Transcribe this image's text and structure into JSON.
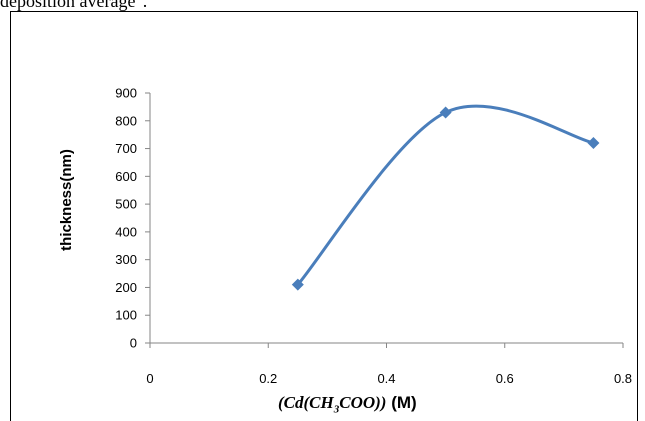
{
  "caption_fragment": "deposition average\".",
  "chart_data": {
    "type": "line",
    "smooth": true,
    "x": [
      0.25,
      0.5,
      0.75
    ],
    "y": [
      210,
      830,
      720
    ],
    "xlim": [
      0,
      0.8
    ],
    "ylim": [
      0,
      900
    ],
    "x_ticks": [
      "0",
      "0.2",
      "0.4",
      "0.6",
      "0.8"
    ],
    "y_ticks": [
      "0",
      "100",
      "200",
      "300",
      "400",
      "500",
      "600",
      "700",
      "800",
      "900"
    ],
    "ylabel": "thickness(nm)",
    "xlabel": "(Cd(CH3COO)) (M)",
    "xlabel_chem": "(Cd(CH",
    "xlabel_sub": "3",
    "xlabel_chem_end": "COO))",
    "xlabel_unit": "(M)",
    "grid": false,
    "legend": "none",
    "series_color": "#4A7EBB",
    "marker": "diamond"
  }
}
